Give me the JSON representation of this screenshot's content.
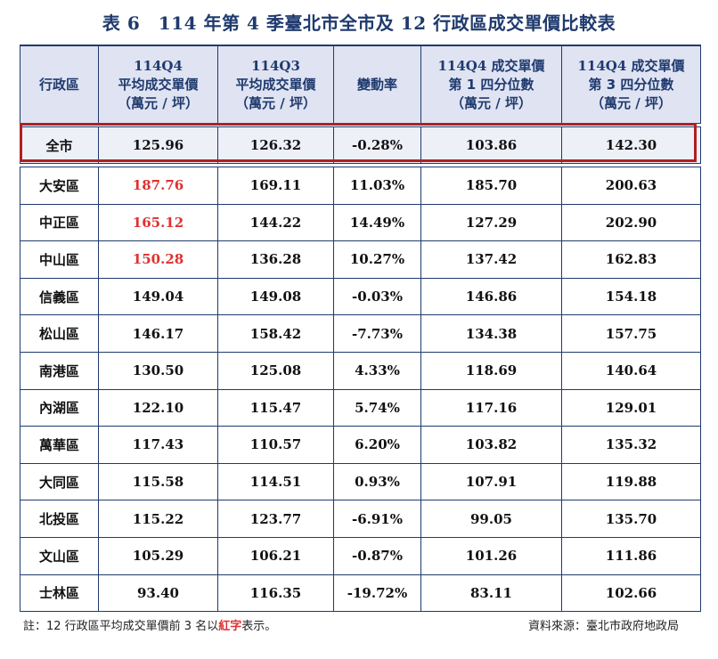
{
  "title": "表 6　114 年第 4 季臺北市全市及 12 行政區成交單價比較表",
  "columns": [
    {
      "l1": "行政區",
      "l2": "",
      "l3": ""
    },
    {
      "l1": "114Q4",
      "l2": "平均成交單價",
      "l3": "（萬元 / 坪）"
    },
    {
      "l1": "114Q3",
      "l2": "平均成交單價",
      "l3": "（萬元 / 坪）"
    },
    {
      "l1": "變動率",
      "l2": "",
      "l3": ""
    },
    {
      "l1": "114Q4 成交單價",
      "l2": "第 1 四分位數",
      "l3": "（萬元 / 坪）"
    },
    {
      "l1": "114Q4 成交單價",
      "l2": "第 3 四分位數",
      "l3": "（萬元 / 坪）"
    }
  ],
  "whole_city": {
    "name": "全市",
    "q4": "125.96",
    "q3": "126.32",
    "change": "-0.28%",
    "p25": "103.86",
    "p75": "142.30"
  },
  "rows": [
    {
      "name": "大安區",
      "q4": "187.76",
      "q3": "169.11",
      "change": "11.03%",
      "p25": "185.70",
      "p75": "200.63",
      "top3": true
    },
    {
      "name": "中正區",
      "q4": "165.12",
      "q3": "144.22",
      "change": "14.49%",
      "p25": "127.29",
      "p75": "202.90",
      "top3": true
    },
    {
      "name": "中山區",
      "q4": "150.28",
      "q3": "136.28",
      "change": "10.27%",
      "p25": "137.42",
      "p75": "162.83",
      "top3": true
    },
    {
      "name": "信義區",
      "q4": "149.04",
      "q3": "149.08",
      "change": "-0.03%",
      "p25": "146.86",
      "p75": "154.18",
      "top3": false
    },
    {
      "name": "松山區",
      "q4": "146.17",
      "q3": "158.42",
      "change": "-7.73%",
      "p25": "134.38",
      "p75": "157.75",
      "top3": false
    },
    {
      "name": "南港區",
      "q4": "130.50",
      "q3": "125.08",
      "change": "4.33%",
      "p25": "118.69",
      "p75": "140.64",
      "top3": false
    },
    {
      "name": "內湖區",
      "q4": "122.10",
      "q3": "115.47",
      "change": "5.74%",
      "p25": "117.16",
      "p75": "129.01",
      "top3": false
    },
    {
      "name": "萬華區",
      "q4": "117.43",
      "q3": "110.57",
      "change": "6.20%",
      "p25": "103.82",
      "p75": "135.32",
      "top3": false
    },
    {
      "name": "大同區",
      "q4": "115.58",
      "q3": "114.51",
      "change": "0.93%",
      "p25": "107.91",
      "p75": "119.88",
      "top3": false
    },
    {
      "name": "北投區",
      "q4": "115.22",
      "q3": "123.77",
      "change": "-6.91%",
      "p25": "99.05",
      "p75": "135.70",
      "top3": false
    },
    {
      "name": "文山區",
      "q4": "105.29",
      "q3": "106.21",
      "change": "-0.87%",
      "p25": "101.26",
      "p75": "111.86",
      "top3": false
    },
    {
      "name": "士林區",
      "q4": "93.40",
      "q3": "116.35",
      "change": "-19.72%",
      "p25": "83.11",
      "p75": "102.66",
      "top3": false
    }
  ],
  "note": {
    "prefix": "註：12 行政區平均成交單價前 3 名以",
    "emphasis": "紅字",
    "suffix": "表示。"
  },
  "source": "資料來源：臺北市政府地政局",
  "colors": {
    "header_bg": "#dfe3f2",
    "border": "#1f3a6e",
    "highlight": "#b01f1f",
    "top3_text": "#e03030"
  }
}
